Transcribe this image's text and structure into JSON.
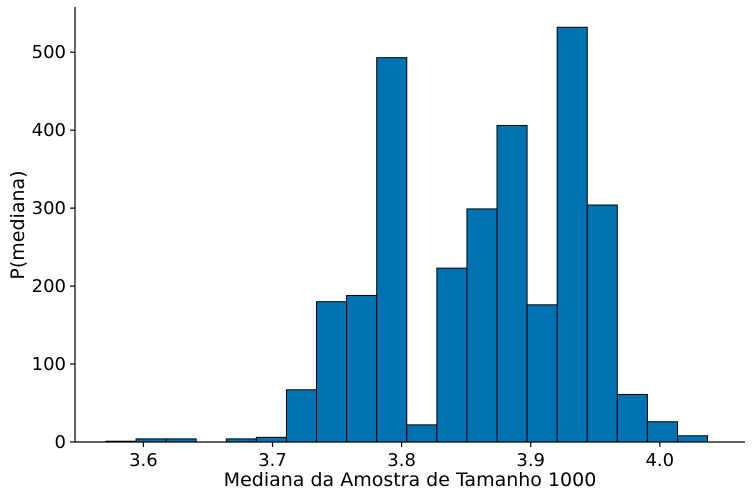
{
  "chart_data": {
    "type": "bar",
    "subtype": "histogram",
    "bar_color": "#0072B2",
    "xlabel": "Mediana da Amostra de Tamanho 1000",
    "ylabel": "P(mediana)",
    "xlim": [
      3.547,
      4.066
    ],
    "ylim": [
      0,
      558
    ],
    "grid": false,
    "xticks": [
      3.6,
      3.7,
      3.8,
      3.9,
      4.0
    ],
    "xtick_labels": [
      "3.6",
      "3.7",
      "3.8",
      "3.9",
      "4.0"
    ],
    "yticks": [
      0,
      100,
      200,
      300,
      400,
      500
    ],
    "ytick_labels": [
      "0",
      "100",
      "200",
      "300",
      "400",
      "500"
    ],
    "bins": [
      {
        "x0": 3.571,
        "x1": 3.5943,
        "value": 1
      },
      {
        "x0": 3.5943,
        "x1": 3.6176,
        "value": 4
      },
      {
        "x0": 3.6176,
        "x1": 3.6409,
        "value": 4
      },
      {
        "x0": 3.6409,
        "x1": 3.6642,
        "value": 0
      },
      {
        "x0": 3.6642,
        "x1": 3.6875,
        "value": 4
      },
      {
        "x0": 3.6875,
        "x1": 3.7108,
        "value": 6
      },
      {
        "x0": 3.7108,
        "x1": 3.7341,
        "value": 67
      },
      {
        "x0": 3.7341,
        "x1": 3.7574,
        "value": 180
      },
      {
        "x0": 3.7574,
        "x1": 3.7807,
        "value": 188
      },
      {
        "x0": 3.7807,
        "x1": 3.804,
        "value": 493
      },
      {
        "x0": 3.804,
        "x1": 3.8273,
        "value": 22
      },
      {
        "x0": 3.8273,
        "x1": 3.8506,
        "value": 223
      },
      {
        "x0": 3.8506,
        "x1": 3.8739,
        "value": 299
      },
      {
        "x0": 3.8739,
        "x1": 3.8972,
        "value": 406
      },
      {
        "x0": 3.8972,
        "x1": 3.9205,
        "value": 176
      },
      {
        "x0": 3.9205,
        "x1": 3.9438,
        "value": 532
      },
      {
        "x0": 3.9438,
        "x1": 3.9671,
        "value": 304
      },
      {
        "x0": 3.9671,
        "x1": 3.9904,
        "value": 61
      },
      {
        "x0": 3.9904,
        "x1": 4.0137,
        "value": 26
      },
      {
        "x0": 4.0137,
        "x1": 4.037,
        "value": 8
      }
    ]
  }
}
